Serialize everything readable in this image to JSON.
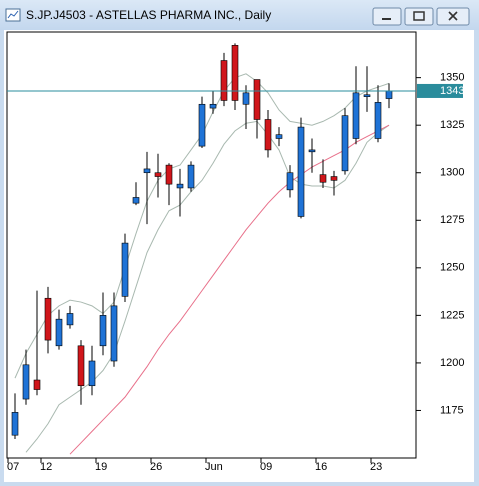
{
  "chart_data": {
    "type": "candlestick",
    "title": "S.JP.J4503 - ASTELLAS PHARMA INC., Daily",
    "categories": [
      "07",
      null,
      null,
      "12",
      null,
      null,
      null,
      null,
      "19",
      null,
      null,
      null,
      null,
      "26",
      null,
      null,
      null,
      null,
      "Jun",
      null,
      null,
      null,
      null,
      "09",
      null,
      null,
      null,
      null,
      "16",
      null,
      null,
      null,
      null,
      "23",
      null
    ],
    "open": [
      1162,
      1181,
      1191,
      1234,
      1209,
      1220,
      1209,
      1188,
      1209,
      1201,
      1235,
      1284,
      1300,
      1300,
      1304,
      1292,
      1292,
      1314,
      1334,
      1359,
      1367,
      1336,
      1349,
      1328,
      1318,
      1291,
      1277,
      1311,
      1299,
      1298,
      1301,
      1318,
      1340,
      1318,
      1339
    ],
    "high": [
      1184,
      1207,
      1238,
      1240,
      1228,
      1230,
      1212,
      1209,
      1237,
      1237,
      1268,
      1295,
      1311,
      1310,
      1305,
      1302,
      1306,
      1340,
      1343,
      1363,
      1368,
      1346,
      1349,
      1333,
      1324,
      1304,
      1329,
      1318,
      1307,
      1301,
      1334,
      1356,
      1356,
      1346,
      1347
    ],
    "low": [
      1160,
      1178,
      1183,
      1205,
      1207,
      1218,
      1178,
      1183,
      1204,
      1198,
      1232,
      1283,
      1273,
      1287,
      1283,
      1277,
      1290,
      1313,
      1331,
      1335,
      1333,
      1323,
      1318,
      1308,
      1314,
      1287,
      1276,
      1300,
      1292,
      1288,
      1299,
      1315,
      1332,
      1316,
      1334
    ],
    "close": [
      1174,
      1199,
      1186,
      1212,
      1223,
      1226,
      1188,
      1201,
      1225,
      1230,
      1263,
      1287,
      1302,
      1298,
      1294,
      1294,
      1304,
      1336,
      1336,
      1338,
      1338,
      1342,
      1328,
      1312,
      1320,
      1300,
      1324,
      1312,
      1295,
      1296,
      1330,
      1342,
      1341,
      1337,
      1343
    ],
    "up_color": "#1f73d6",
    "down_color": "#d0161b",
    "overlays": [
      {
        "color": "#a9b9b0",
        "values": [
          1192,
          1205,
          1215,
          1225,
          1230,
          1233,
          1232,
          1230,
          1226,
          1232,
          1250,
          1268,
          1285,
          1296,
          1302,
          1304,
          1312,
          1320,
          1332,
          1343,
          1350,
          1352,
          1348,
          1342,
          1333,
          1327,
          1326,
          1325,
          1327,
          1330,
          1334,
          1340,
          1343,
          1345,
          1347
        ]
      },
      {
        "color": "#a9b9b0",
        "values": [
          null,
          1153,
          1160,
          1168,
          1178,
          1182,
          1186,
          1190,
          1196,
          1205,
          1222,
          1240,
          1258,
          1270,
          1280,
          1283,
          1290,
          1296,
          1305,
          1315,
          1322,
          1326,
          1327,
          1320,
          1312,
          1298,
          1294,
          1293,
          1293,
          1292,
          1296,
          1305,
          1316,
          1321,
          1325
        ]
      },
      {
        "color": "#e8708a",
        "values": [
          null,
          null,
          null,
          null,
          null,
          1152,
          1158,
          1164,
          1170,
          1176,
          1182,
          1190,
          1198,
          1207,
          1215,
          1222,
          1230,
          1238,
          1246,
          1254,
          1262,
          1270,
          1277,
          1284,
          1290,
          1295,
          1299,
          1303,
          1306,
          1309,
          1312,
          1316,
          1319,
          1322,
          1325
        ]
      }
    ],
    "last_price": {
      "value": 1343,
      "color": "#2a8c9c"
    },
    "ylim": [
      1150,
      1374
    ],
    "yticks": [
      1175,
      1200,
      1225,
      1250,
      1275,
      1300,
      1325,
      1350
    ]
  }
}
